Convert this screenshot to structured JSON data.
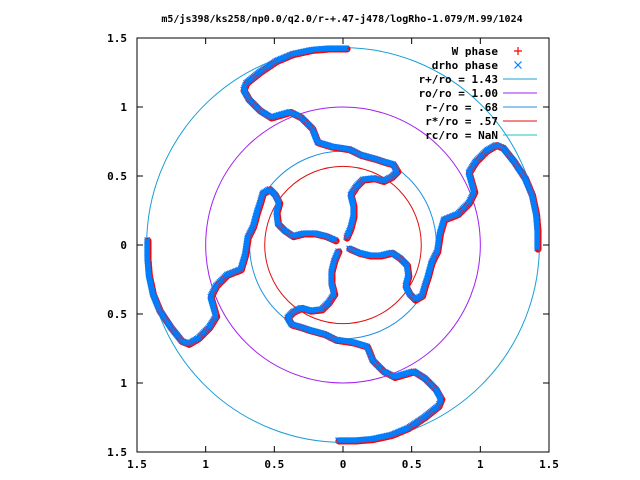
{
  "chart_data": {
    "type": "scatter",
    "title": "m5/js398/ks258/np0.0/q2.0/r-+.47-j478/logRho-1.079/M.99/1024",
    "xlabel": "",
    "ylabel": "",
    "xlim": [
      -1.5,
      1.5
    ],
    "ylim": [
      -1.5,
      1.5
    ],
    "x_ticks": [
      "1.5",
      "1",
      "0.5",
      "0",
      "0.5",
      "1",
      "1.5"
    ],
    "y_ticks": [
      "1.5",
      "1",
      "0.5",
      "0",
      "0.5",
      "1",
      "1.5"
    ],
    "x_tick_values": [
      -1.5,
      -1,
      -0.5,
      0,
      0.5,
      1,
      1.5
    ],
    "y_tick_values": [
      1.5,
      1,
      0.5,
      0,
      -0.5,
      -1,
      -1.5
    ],
    "grid": false,
    "legend_position": "top-right",
    "series": [
      {
        "name": "W phase",
        "kind": "points",
        "marker": "plus",
        "color": "#ff0000"
      },
      {
        "name": "drho phase",
        "kind": "points",
        "marker": "cross",
        "color": "#0080ff"
      }
    ],
    "circles": [
      {
        "name": "r+/ro = 1.43",
        "radius": 1.43,
        "color": "#1a9fd6"
      },
      {
        "name": "ro/ro = 1.00",
        "radius": 1.0,
        "color": "#a020f0"
      },
      {
        "name": "r-/ro = .68",
        "radius": 0.68,
        "color": "#2090e0"
      },
      {
        "name": "r*/ro = .57",
        "radius": 0.57,
        "color": "#e01010"
      },
      {
        "name": "rc/ro = NaN",
        "radius": null,
        "color": "#20c0c0"
      }
    ],
    "arms": [
      {
        "rotation_deg": 0
      },
      {
        "rotation_deg": 90
      },
      {
        "rotation_deg": 180
      },
      {
        "rotation_deg": 270
      }
    ],
    "arm_path": [
      [
        0.03,
        0.05
      ],
      [
        0.06,
        0.12
      ],
      [
        0.08,
        0.2
      ],
      [
        0.08,
        0.28
      ],
      [
        0.06,
        0.36
      ],
      [
        0.1,
        0.42
      ],
      [
        0.15,
        0.47
      ],
      [
        0.23,
        0.48
      ],
      [
        0.3,
        0.46
      ],
      [
        0.36,
        0.49
      ],
      [
        0.4,
        0.53
      ],
      [
        0.37,
        0.58
      ],
      [
        0.3,
        0.6
      ],
      [
        0.24,
        0.62
      ],
      [
        0.13,
        0.65
      ],
      [
        0.05,
        0.69
      ],
      [
        -0.08,
        0.71
      ],
      [
        -0.18,
        0.74
      ],
      [
        -0.22,
        0.84
      ],
      [
        -0.3,
        0.92
      ],
      [
        -0.38,
        0.96
      ],
      [
        -0.45,
        0.94
      ],
      [
        -0.52,
        0.92
      ],
      [
        -0.6,
        0.97
      ],
      [
        -0.68,
        1.05
      ],
      [
        -0.72,
        1.12
      ],
      [
        -0.7,
        1.17
      ],
      [
        -0.6,
        1.25
      ],
      [
        -0.48,
        1.33
      ],
      [
        -0.36,
        1.38
      ],
      [
        -0.22,
        1.41
      ],
      [
        -0.1,
        1.42
      ],
      [
        0.03,
        1.42
      ]
    ]
  }
}
